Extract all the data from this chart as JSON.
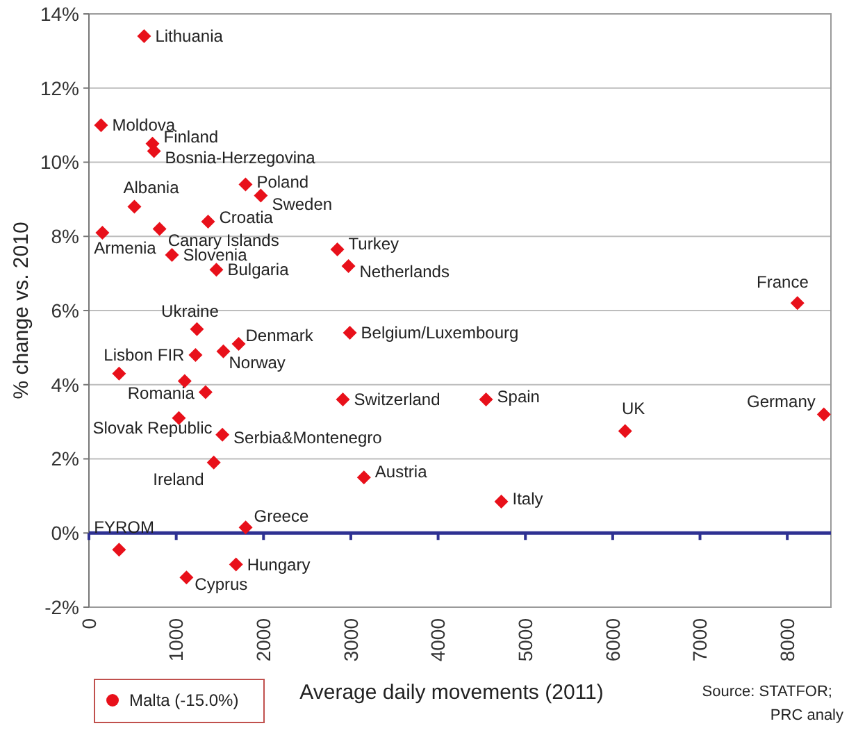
{
  "chart_data": {
    "type": "scatter",
    "xlabel": "Average daily movements (2011)",
    "ylabel": "% change vs. 2010",
    "xlim": [
      0,
      8500
    ],
    "xticks": [
      0,
      1000,
      2000,
      3000,
      4000,
      5000,
      6000,
      7000,
      8000
    ],
    "ylim": [
      -2,
      14
    ],
    "yticks": [
      {
        "value": -2,
        "label": "-2%"
      },
      {
        "value": 0,
        "label": "0%"
      },
      {
        "value": 2,
        "label": "2%"
      },
      {
        "value": 4,
        "label": "4%"
      },
      {
        "value": 6,
        "label": "6%"
      },
      {
        "value": 8,
        "label": "8%"
      },
      {
        "value": 10,
        "label": "10%"
      },
      {
        "value": 12,
        "label": "12%"
      },
      {
        "value": 14,
        "label": "14%"
      }
    ],
    "grid": "y",
    "marker": "diamond",
    "ref_lines": [
      {
        "axis": "y",
        "value": 0,
        "color": "#2e3192"
      }
    ],
    "series": [
      {
        "color": "#e8101a",
        "x": [
          632,
          139,
          728,
          745,
          521,
          154,
          809,
          1365,
          951,
          1460,
          1794,
          1969,
          2846,
          2973,
          8116,
          8419,
          6142,
          4549,
          4724,
          3150,
          2909,
          2989,
          1237,
          1715,
          1540,
          1221,
          345,
          1097,
          1336,
          1030,
          1529,
          1430,
          345,
          1795,
          1685,
          1117
        ],
        "values": [
          13.4,
          11.0,
          10.5,
          10.3,
          8.8,
          8.1,
          8.2,
          8.4,
          7.5,
          7.1,
          9.4,
          9.1,
          7.65,
          7.2,
          6.2,
          3.2,
          2.75,
          3.6,
          0.85,
          1.5,
          3.6,
          5.4,
          5.5,
          5.1,
          4.9,
          4.8,
          4.3,
          4.1,
          3.8,
          3.1,
          2.65,
          1.9,
          -0.45,
          0.15,
          -0.85,
          -1.2
        ]
      }
    ],
    "annotations": [
      {
        "text": "Lithuania",
        "x": 632,
        "y": 13.4
      },
      {
        "text": "Moldova",
        "x": 139,
        "y": 11.0
      },
      {
        "text": "Finland",
        "x": 728,
        "y": 10.5
      },
      {
        "text": "Bosnia-Herzegovina",
        "x": 745,
        "y": 10.3
      },
      {
        "text": "Albania",
        "x": 521,
        "y": 8.8
      },
      {
        "text": "Armenia",
        "x": 154,
        "y": 8.1
      },
      {
        "text": "Canary Islands",
        "x": 809,
        "y": 8.2
      },
      {
        "text": "Croatia",
        "x": 1365,
        "y": 8.4
      },
      {
        "text": "Slovenia",
        "x": 951,
        "y": 7.5
      },
      {
        "text": "Bulgaria",
        "x": 1460,
        "y": 7.1
      },
      {
        "text": "Poland",
        "x": 1794,
        "y": 9.4
      },
      {
        "text": "Sweden",
        "x": 1969,
        "y": 9.1
      },
      {
        "text": "Turkey",
        "x": 2846,
        "y": 7.65
      },
      {
        "text": "Netherlands",
        "x": 2973,
        "y": 7.2
      },
      {
        "text": "France",
        "x": 8116,
        "y": 6.2
      },
      {
        "text": "Germany",
        "x": 8419,
        "y": 3.2
      },
      {
        "text": "UK",
        "x": 6142,
        "y": 2.75
      },
      {
        "text": "Spain",
        "x": 4549,
        "y": 3.6
      },
      {
        "text": "Italy",
        "x": 4724,
        "y": 0.85
      },
      {
        "text": "Austria",
        "x": 3150,
        "y": 1.5
      },
      {
        "text": "Switzerland",
        "x": 2909,
        "y": 3.6
      },
      {
        "text": "Belgium/Luxembourg",
        "x": 2989,
        "y": 5.4
      },
      {
        "text": "Ukraine",
        "x": 1237,
        "y": 5.5
      },
      {
        "text": "Denmark",
        "x": 1715,
        "y": 5.1
      },
      {
        "text": "Norway",
        "x": 1540,
        "y": 4.9
      },
      {
        "text": "Lisbon FIR",
        "x": 1221,
        "y": 4.8
      },
      {
        "text": "Romania",
        "x": 1336,
        "y": 3.8
      },
      {
        "text": "Slovak Republic",
        "x": 1030,
        "y": 3.1
      },
      {
        "text": "Serbia&Montenegro",
        "x": 1529,
        "y": 2.65
      },
      {
        "text": "Ireland",
        "x": 1430,
        "y": 1.9
      },
      {
        "text": "FYROM",
        "x": 345,
        "y": -0.45
      },
      {
        "text": "Greece",
        "x": 1795,
        "y": 0.15
      },
      {
        "text": "Hungary",
        "x": 1685,
        "y": -0.85
      },
      {
        "text": "Cyprus",
        "x": 1117,
        "y": -1.2
      },
      "Malta (-15.0%)",
      "Source: STATFOR;",
      "PRC analy"
    ]
  }
}
